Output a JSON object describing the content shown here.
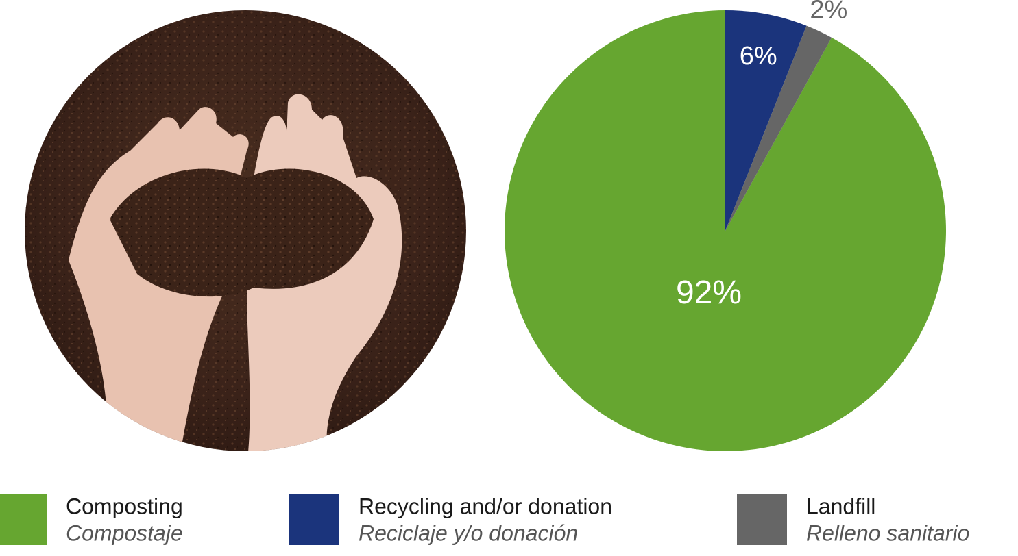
{
  "chart_data": {
    "type": "pie",
    "categories": [
      "Composting",
      "Recycling and/or donation",
      "Landfill"
    ],
    "categories_translated": [
      "Compostaje",
      "Reciclaje y/o donación",
      "Relleno sanitario"
    ],
    "values": [
      92,
      6,
      2
    ],
    "value_labels": [
      "92%",
      "6%",
      "2%"
    ],
    "colors": [
      "#66a630",
      "#1b347c",
      "#666666"
    ]
  }
}
